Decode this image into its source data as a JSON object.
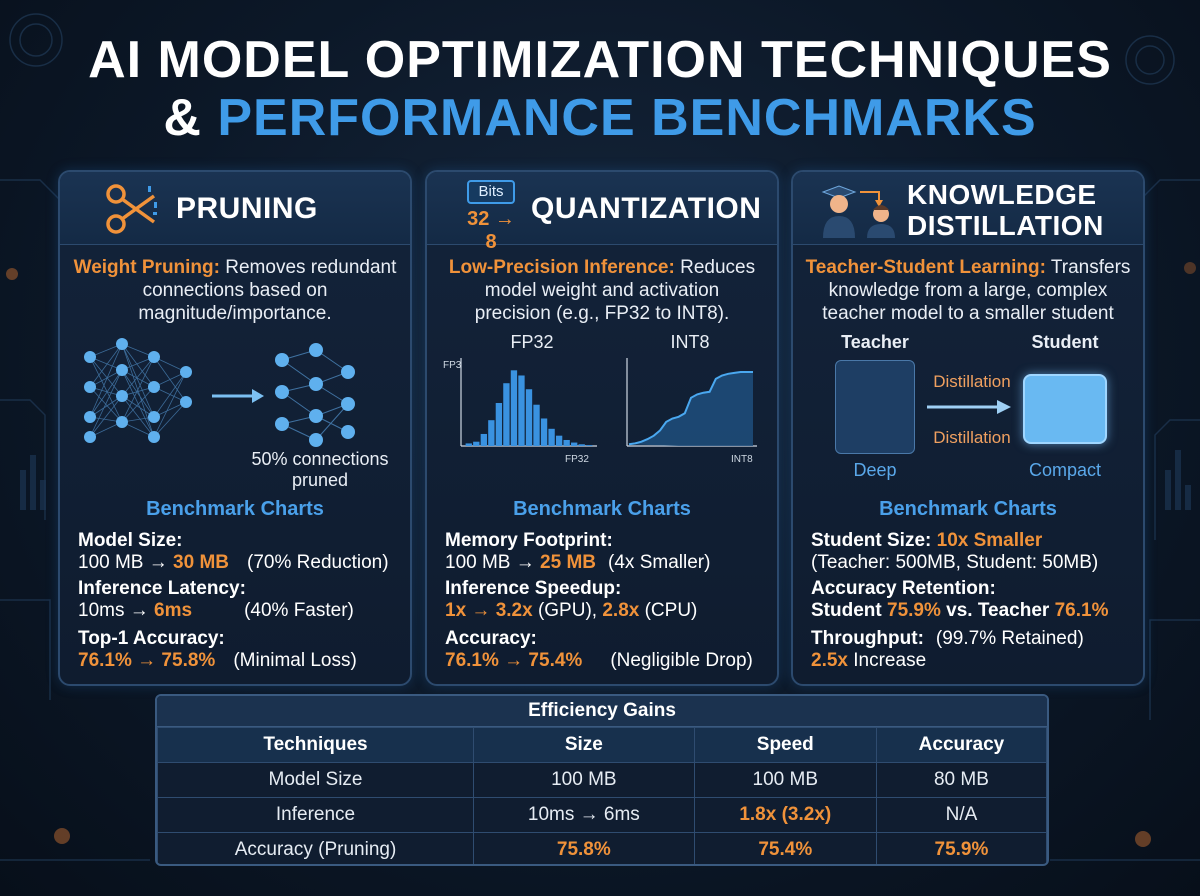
{
  "title": {
    "line1": "AI MODEL OPTIMIZATION TECHNIQUES",
    "line2_amp": "&",
    "line2_accent": "PERFORMANCE BENCHMARKS"
  },
  "colors": {
    "accent_blue": "#3f9be8",
    "accent_orange": "#f0923a",
    "panel_border": "#2c4a6e"
  },
  "panels": {
    "pruning": {
      "icon": "scissors-icon",
      "title": "PRUNING",
      "desc_highlight": "Weight Pruning:",
      "desc_rest_1": " Removes redundant",
      "desc_line2": "connections based on",
      "desc_line3": "magnitude/importance.",
      "figure_caption_1": "50% connections",
      "figure_caption_2": "pruned",
      "bench_title": "Benchmark Charts",
      "m1_label": "Model Size:",
      "m1_a": "100 MB → ",
      "m1_b": "30 MB",
      "m1_c": "(70% Reduction)",
      "m2_label": "Inference Latency:",
      "m2_a": "10ms → ",
      "m2_b": "6ms",
      "m2_c": "(40% Faster)",
      "m3_label": "Top-1 Accuracy:",
      "m3_a": "76.1% → 75.8%",
      "m3_c": "(Minimal Loss)"
    },
    "quantization": {
      "icon_badge": "Bits",
      "icon_conv": "32 → 8",
      "title": "QUANTIZATION",
      "desc_highlight": "Low-Precision Inference:",
      "desc_rest_1": " Reduces",
      "desc_line2": "model weight and activation",
      "desc_line3": "precision (e.g., FP32 to INT8).",
      "chart1_title": "FP32",
      "chart1_ylabel": "FP3",
      "chart1_xlabel": "FP32",
      "chart2_title": "INT8",
      "chart2_xlabel": "INT8",
      "bench_title": "Benchmark Charts",
      "m1_label": "Memory Footprint:",
      "m1_a": "100 MB → ",
      "m1_b": "25 MB",
      "m1_c": "(4x Smaller)",
      "m2_label": "Inference Speedup:",
      "m2_a": "1x → 3.2x",
      "m2_b": " (GPU),  ",
      "m2_c": "2.8x",
      "m2_d": " (CPU)",
      "m3_label": "Accuracy:",
      "m3_a": "76.1% → 75.4%",
      "m3_c": "(Negligible Drop)"
    },
    "distillation": {
      "icon": "teacher-student-icon",
      "title_1": "KNOWLEDGE",
      "title_2": "DISTILLATION",
      "desc_highlight": "Teacher-Student Learning:",
      "desc_rest_1": " Transfers",
      "desc_line2": "knowledge from a large, complex",
      "desc_line3": "teacher model to a smaller student",
      "teacher_label": "Teacher",
      "student_label": "Student",
      "arrow_top": "Distillation",
      "arrow_bottom": "Distillation",
      "deep_label": "Deep",
      "compact_label": "Compact",
      "bench_title": "Benchmark Charts",
      "m1_label": "Student Size: ",
      "m1_b": "10x Smaller",
      "m1_c": "(Teacher: 500MB, Student: 50MB)",
      "m2_label": "Accuracy Retention:",
      "m2_a": "Student ",
      "m2_b": "75.9%",
      "m2_c": " vs. Teacher ",
      "m2_d": "76.1%",
      "m2_e": "(99.7% Retained)",
      "m3_label": "Throughput:",
      "m3_a": "2.5x",
      "m3_b": " Increase"
    }
  },
  "efficiency_table": {
    "caption": "Efficiency Gains",
    "headers": [
      "Techniques",
      "Size",
      "Speed",
      "Accuracy"
    ],
    "rows": [
      [
        "Model Size",
        "100 MB",
        "100 MB",
        "80 MB"
      ],
      [
        "Inference",
        "10ms → 6ms",
        "1.8x (3.2x)",
        "N/A"
      ],
      [
        "Accuracy (Pruning)",
        "75.8%",
        "75.4%",
        "75.9%"
      ]
    ]
  },
  "chart_data": [
    {
      "type": "bar",
      "title": "FP32",
      "xlabel": "FP32",
      "ylabel": "FP3",
      "grid": false,
      "values": [
        3,
        5,
        14,
        30,
        50,
        73,
        88,
        82,
        66,
        48,
        32,
        20,
        12,
        7,
        4,
        2,
        1
      ],
      "ylim": [
        0,
        100
      ]
    },
    {
      "type": "area",
      "title": "INT8",
      "xlabel": "INT8",
      "grid": false,
      "x": [
        0,
        5,
        10,
        15,
        20,
        25,
        30,
        35,
        40,
        45,
        50,
        55,
        60,
        65,
        70,
        75,
        80,
        85,
        90,
        95,
        100
      ],
      "y": [
        2,
        3,
        5,
        8,
        12,
        18,
        28,
        32,
        34,
        38,
        56,
        60,
        62,
        63,
        78,
        82,
        84,
        85,
        86,
        86,
        86
      ],
      "ylim": [
        0,
        100
      ]
    }
  ]
}
